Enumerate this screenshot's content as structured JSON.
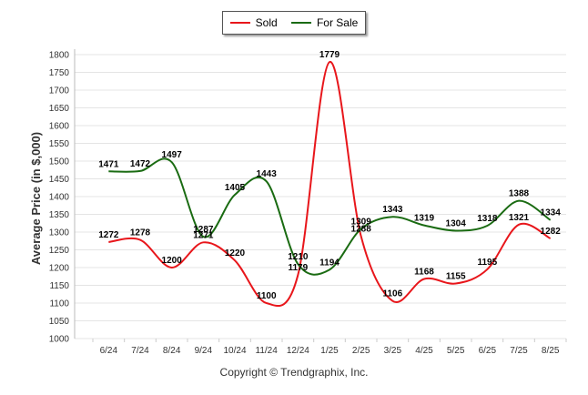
{
  "chart_data": {
    "type": "line",
    "ylabel": "Average Price (in $,000)",
    "categories": [
      "6/24",
      "7/24",
      "8/24",
      "9/24",
      "10/24",
      "11/24",
      "12/24",
      "1/25",
      "2/25",
      "3/25",
      "4/25",
      "5/25",
      "6/25",
      "7/25",
      "8/25"
    ],
    "series": [
      {
        "name": "Sold",
        "color": "#e8161b",
        "values": [
          1272,
          1278,
          1200,
          1271,
          1220,
          1100,
          1179,
          1779,
          1288,
          1106,
          1168,
          1155,
          1195,
          1321,
          1282
        ]
      },
      {
        "name": "For Sale",
        "color": "#1a6b12",
        "values": [
          1471,
          1472,
          1497,
          1287,
          1405,
          1443,
          1210,
          1194,
          1309,
          1343,
          1319,
          1304,
          1318,
          1388,
          1334
        ]
      }
    ],
    "ylim": [
      1000,
      1800
    ],
    "yticks": [
      1000,
      1050,
      1100,
      1150,
      1200,
      1250,
      1300,
      1350,
      1400,
      1450,
      1500,
      1550,
      1600,
      1650,
      1700,
      1750,
      1800
    ],
    "grid": true,
    "legend": "top-center"
  },
  "footer": {
    "copyright": "Copyright © Trendgraphix, Inc."
  }
}
